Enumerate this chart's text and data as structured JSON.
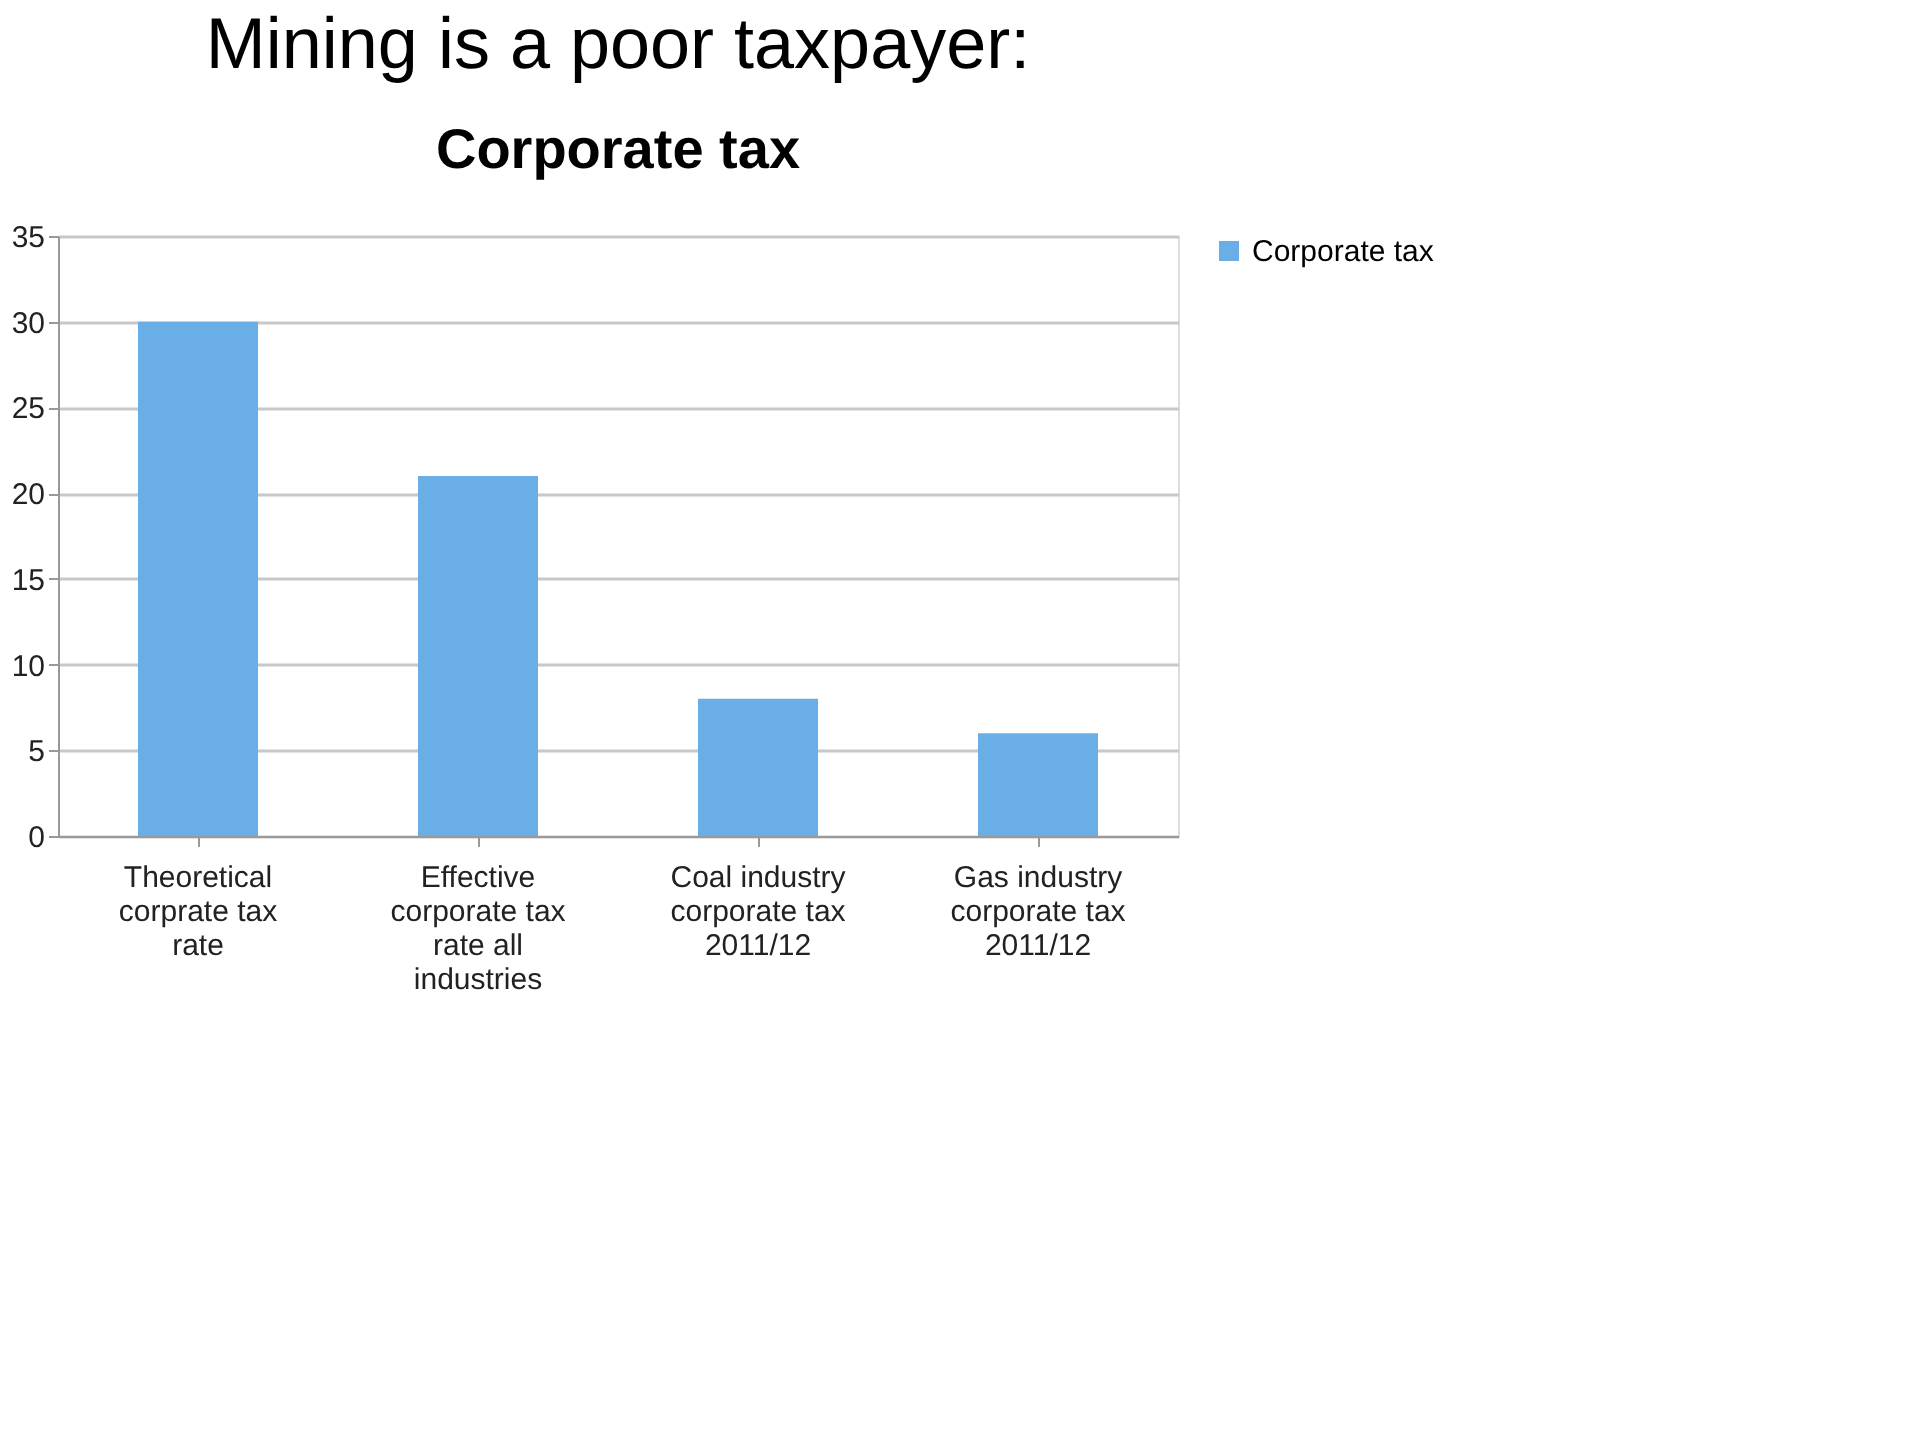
{
  "chart_data": {
    "type": "bar",
    "title": "Mining is a poor taxpayer:",
    "subtitle": "Corporate tax",
    "categories": [
      "Theoretical corprate tax rate",
      "Effective corporate tax rate all industries",
      "Coal industry corporate tax 2011/12",
      "Gas industry corporate tax 2011/12"
    ],
    "series": [
      {
        "name": "Corporate tax",
        "color": "#6aaee8",
        "values": [
          30,
          21,
          8,
          6
        ]
      }
    ],
    "ylim": [
      0,
      35
    ],
    "yticks": [
      0,
      5,
      10,
      15,
      20,
      25,
      30,
      35
    ],
    "grid": "y",
    "legend": "right"
  }
}
